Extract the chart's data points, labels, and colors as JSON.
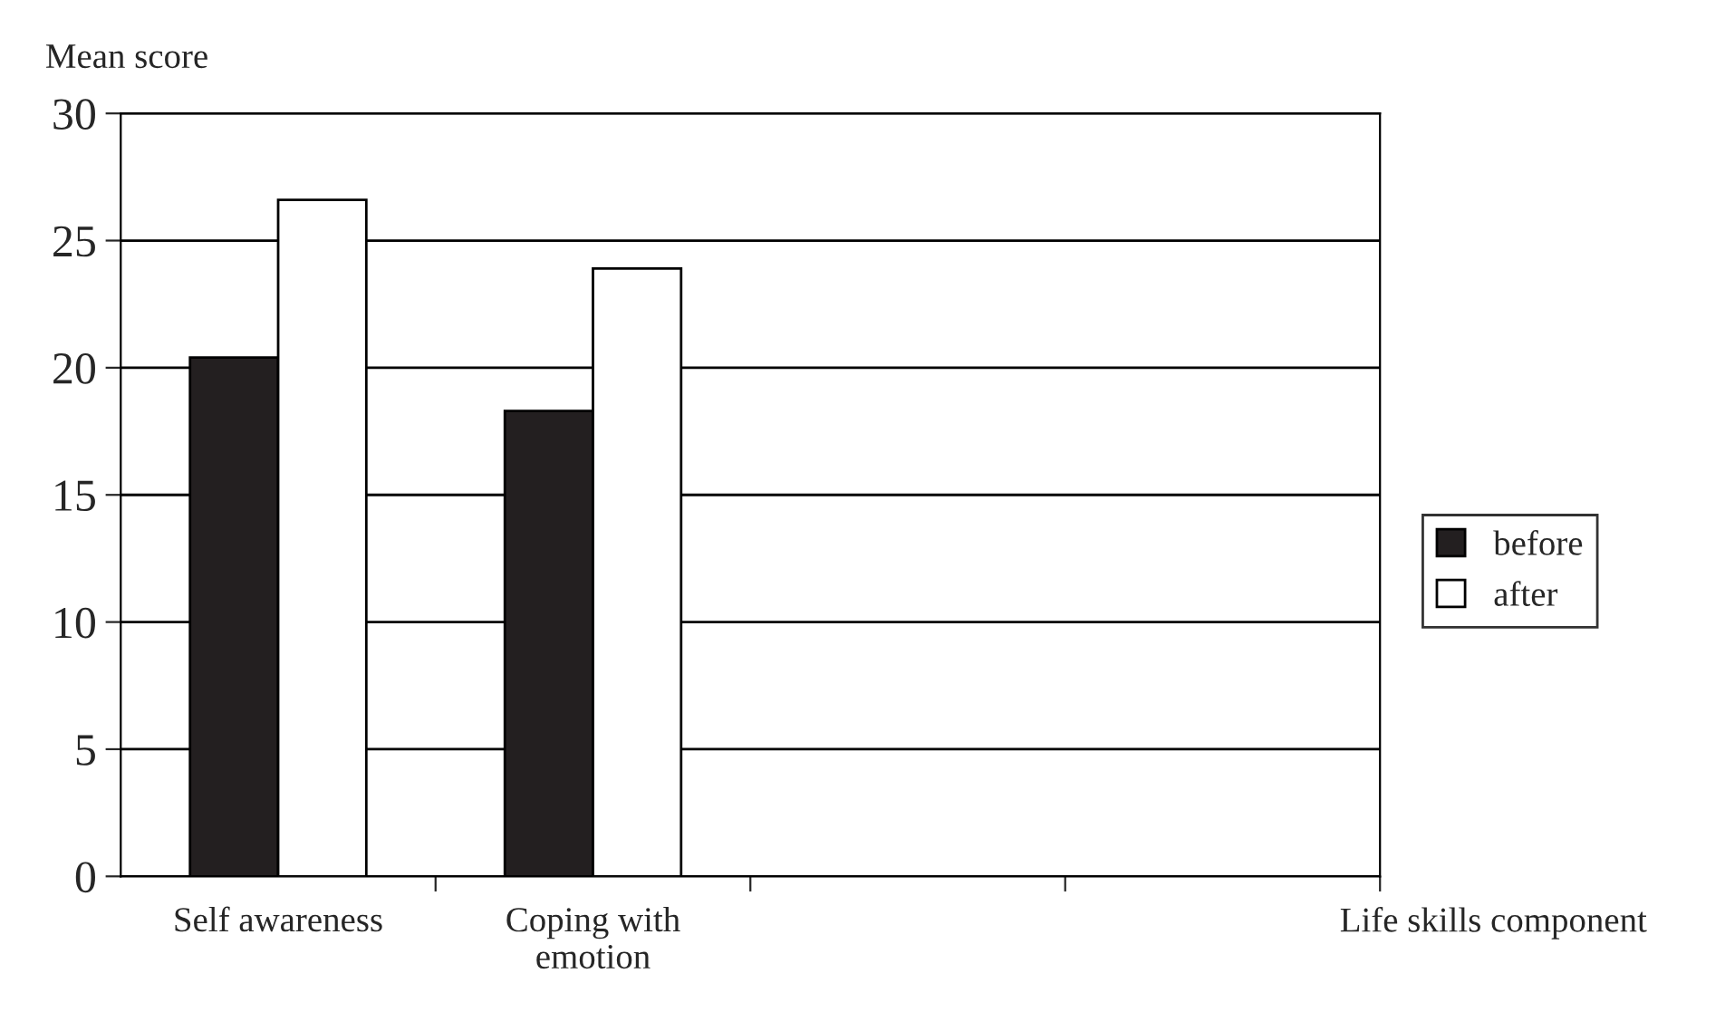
{
  "chart_data": {
    "type": "bar",
    "categories": [
      "Self awareness",
      "Coping with\nemotion",
      null,
      null
    ],
    "series": [
      {
        "name": "before",
        "color": "#231f20",
        "values": [
          20.4,
          18.3,
          null,
          null
        ]
      },
      {
        "name": "after",
        "color": "#ffffff",
        "values": [
          26.6,
          23.9,
          null,
          null
        ]
      }
    ],
    "xlabel": "Life skills component",
    "ylabel": "Mean score",
    "ylim": [
      0,
      30
    ],
    "yticks": [
      0,
      5,
      10,
      15,
      20,
      25,
      30
    ],
    "grid": "y",
    "legend": "right"
  }
}
